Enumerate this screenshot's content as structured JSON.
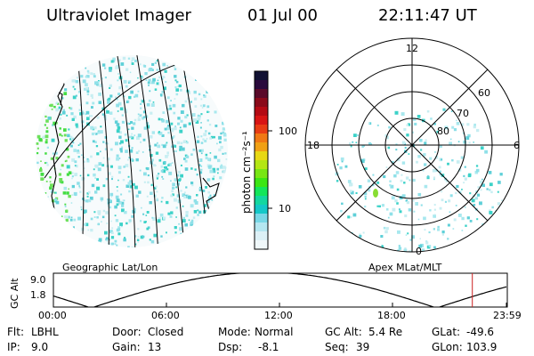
{
  "header": {
    "title": "Ultraviolet Imager",
    "date": "01 Jul 00",
    "time": "22:11:47 UT"
  },
  "geo_panel": {
    "caption": "Geographic Lat/Lon"
  },
  "colorbar": {
    "unit_label": "photon cm⁻²s⁻¹",
    "scale": "log",
    "tick_labels": [
      "100",
      "10"
    ],
    "colors": [
      "#111133",
      "#2a0a3c",
      "#5a0a2a",
      "#8a0a1a",
      "#b40a14",
      "#d81414",
      "#e83c14",
      "#f07814",
      "#f0a014",
      "#e8d814",
      "#b4e614",
      "#78e614",
      "#3ce614",
      "#14e65a",
      "#14d7a0",
      "#14c8c8",
      "#78d7e6",
      "#b4e6f0",
      "#dcf0f6",
      "#f0f8fa"
    ]
  },
  "polar_panel": {
    "caption": "Apex MLat/MLT",
    "mlt_labels": [
      "12",
      "18",
      "6",
      "0"
    ],
    "lat_labels": [
      "60",
      "70",
      "80"
    ]
  },
  "altitude_plot": {
    "ylabel": "GC Alt",
    "yticks": [
      "9.0",
      "1.8"
    ],
    "xticks": [
      "00:00",
      "06:00",
      "12:00",
      "18:00",
      "23:59"
    ],
    "marker_color": "#cc2222"
  },
  "info": {
    "row1": [
      {
        "label": "Flt:",
        "value": "LBHL"
      },
      {
        "label": "Door:",
        "value": "Closed"
      },
      {
        "label": "Mode:",
        "value": "Normal"
      },
      {
        "label": "GC Alt:",
        "value": "5.4 Re"
      },
      {
        "label": "GLat:",
        "value": "-49.6"
      }
    ],
    "row2": [
      {
        "label": "IP:",
        "value": "9.0"
      },
      {
        "label": "Gain:",
        "value": "13"
      },
      {
        "label": "Dsp:",
        "value": "-8.1"
      },
      {
        "label": "Seq:",
        "value": "39"
      },
      {
        "label": "GLon:",
        "value": "103.9"
      }
    ]
  }
}
